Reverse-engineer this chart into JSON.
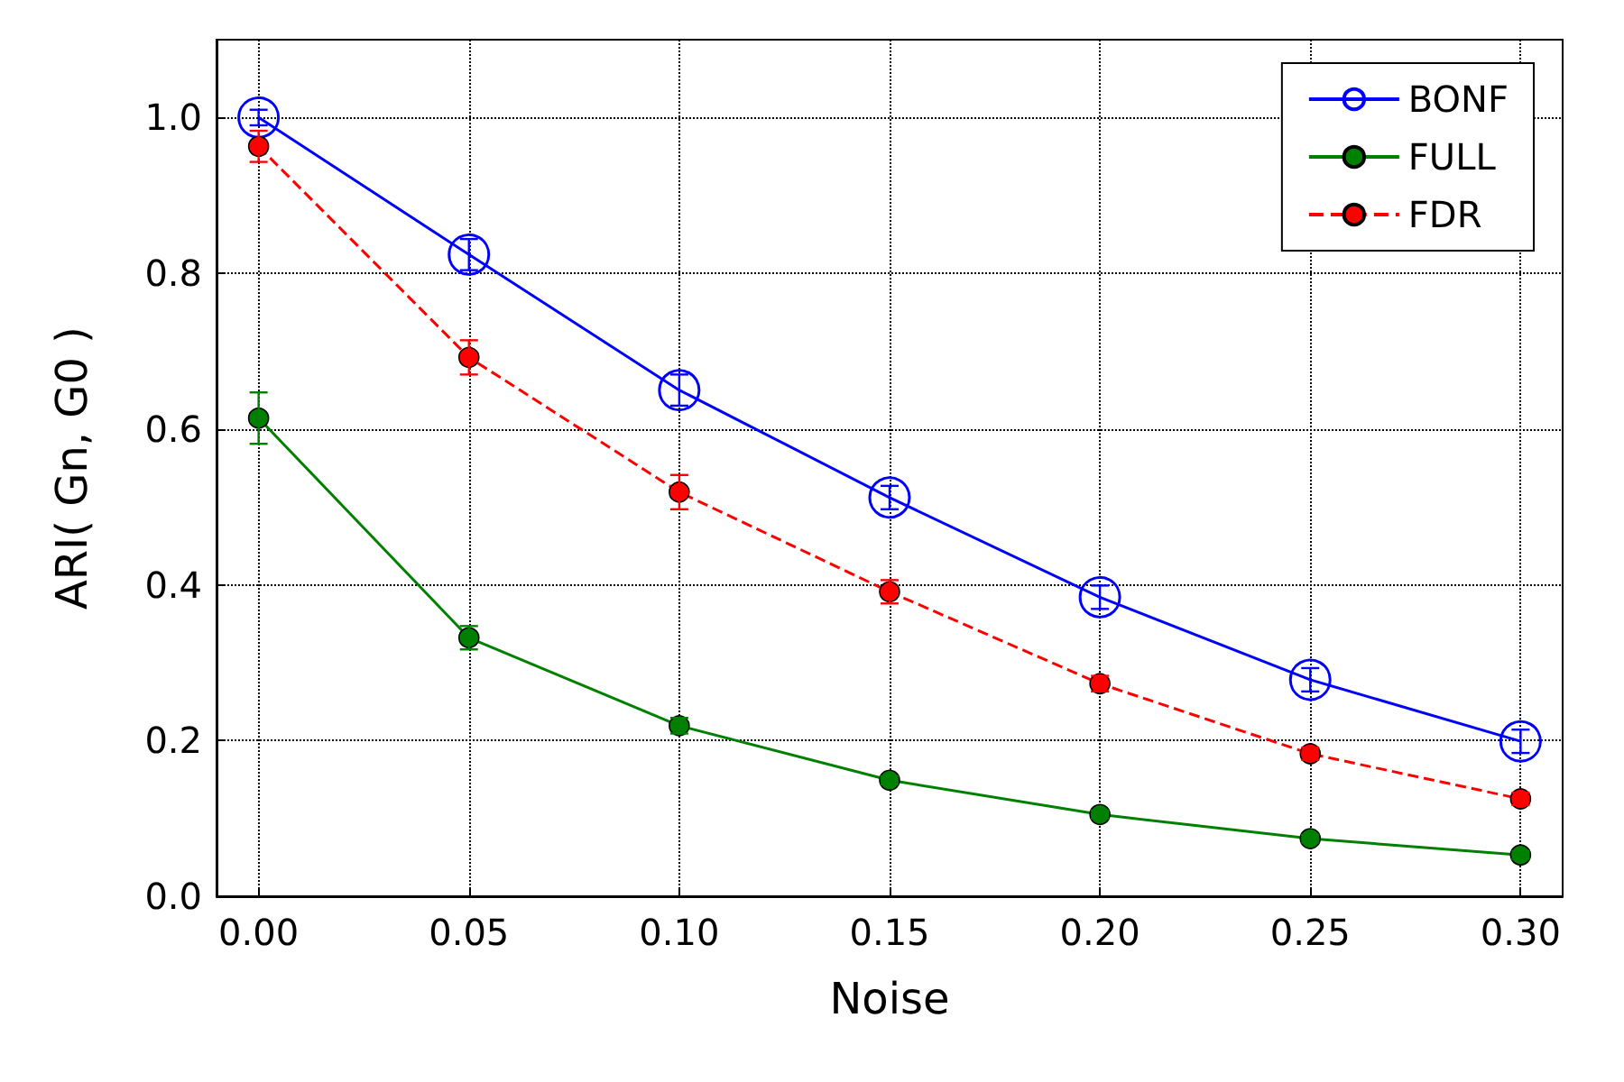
{
  "chart_data": {
    "type": "line",
    "xlabel": "Noise",
    "ylabel": "ARI( Gn, G0 )",
    "x": [
      0.0,
      0.05,
      0.1,
      0.15,
      0.2,
      0.25,
      0.3
    ],
    "series": [
      {
        "name": "BONF",
        "color": "#0000ff",
        "values": [
          1.0,
          0.824,
          0.65,
          0.512,
          0.384,
          0.278,
          0.199
        ],
        "errors": [
          0.01,
          0.02,
          0.02,
          0.015,
          0.015,
          0.015,
          0.015
        ],
        "line_style": "solid"
      },
      {
        "name": "FULL",
        "color": "#008000",
        "values": [
          0.614,
          0.332,
          0.219,
          0.149,
          0.105,
          0.074,
          0.053
        ],
        "errors": [
          0.033,
          0.015,
          0.01,
          0.005,
          0.005,
          0.005,
          0.005
        ],
        "line_style": "solid"
      },
      {
        "name": "FDR",
        "color": "#ff0000",
        "values": [
          0.963,
          0.692,
          0.519,
          0.391,
          0.273,
          0.183,
          0.125
        ],
        "errors": [
          0.02,
          0.022,
          0.022,
          0.015,
          0.01,
          0.008,
          0.008
        ],
        "line_style": "dashed"
      }
    ],
    "xlim": [
      -0.01,
      0.31
    ],
    "xticks": [
      {
        "value": 0.0,
        "label": "0.00"
      },
      {
        "value": 0.05,
        "label": "0.05"
      },
      {
        "value": 0.1,
        "label": "0.10"
      },
      {
        "value": 0.15,
        "label": "0.15"
      },
      {
        "value": 0.2,
        "label": "0.20"
      },
      {
        "value": 0.25,
        "label": "0.25"
      },
      {
        "value": 0.3,
        "label": "0.30"
      }
    ],
    "ylim": [
      0,
      1.1
    ],
    "yticks": [
      {
        "value": 0.0,
        "label": "0.0"
      },
      {
        "value": 0.2,
        "label": "0.2"
      },
      {
        "value": 0.4,
        "label": "0.4"
      },
      {
        "value": 0.6,
        "label": "0.6"
      },
      {
        "value": 0.8,
        "label": "0.8"
      },
      {
        "value": 1.0,
        "label": "1.0"
      }
    ],
    "grid": true,
    "legend": "top right",
    "marker": "circle"
  }
}
